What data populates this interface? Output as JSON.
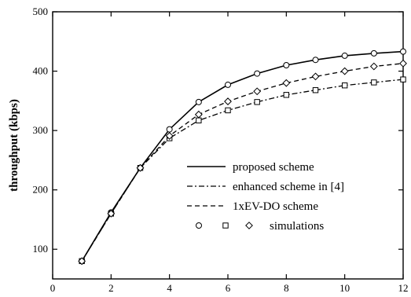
{
  "chart_data": {
    "type": "line",
    "title": "",
    "xlabel": "",
    "ylabel": "throughput (kbps)",
    "xlim": [
      0,
      12
    ],
    "ylim": [
      50,
      500
    ],
    "x_ticks": [
      "0",
      "2",
      "4",
      "6",
      "8",
      "10",
      "12"
    ],
    "y_ticks": [
      "100",
      "200",
      "300",
      "400",
      "500"
    ],
    "grid": false,
    "legend_position": "lower-right",
    "x": [
      1,
      2,
      3,
      4,
      5,
      6,
      7,
      8,
      9,
      10,
      11,
      12
    ],
    "series": [
      {
        "name": "proposed scheme",
        "style": "solid",
        "marker": "circle",
        "color": "#000000",
        "values": [
          80,
          162,
          237,
          302,
          348,
          377,
          396,
          410,
          419,
          426,
          430,
          433
        ]
      },
      {
        "name": "enhanced scheme in [4]",
        "style": "dashdot",
        "marker": "square",
        "color": "#000000",
        "values": [
          80,
          160,
          237,
          287,
          317,
          334,
          348,
          360,
          368,
          376,
          381,
          386
        ]
      },
      {
        "name": "1xEV-DO scheme",
        "style": "dashed",
        "marker": "diamond",
        "color": "#000000",
        "values": [
          80,
          160,
          237,
          291,
          327,
          349,
          366,
          380,
          391,
          400,
          408,
          413
        ]
      }
    ],
    "legend_markers_label": "simulations"
  }
}
